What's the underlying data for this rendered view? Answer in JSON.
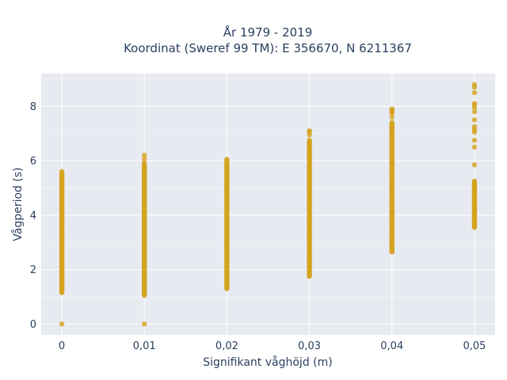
{
  "chart_data": {
    "type": "scatter",
    "title_lines": [
      "År 1979 - 2019",
      "Koordinat (Sweref 99 TM): E 356670, N 6211367"
    ],
    "xlabel": "Signifikant våghöjd (m)",
    "ylabel": "Vågperiod (s)",
    "xlim": [
      -0.0025,
      0.0525
    ],
    "ylim": [
      -0.4,
      9.2
    ],
    "x_ticks": [
      0,
      0.01,
      0.02,
      0.03,
      0.04,
      0.05
    ],
    "x_tick_labels": [
      "0",
      "0,01",
      "0,02",
      "0,03",
      "0,04",
      "0,05"
    ],
    "y_ticks": [
      0,
      2,
      4,
      6,
      8
    ],
    "y_tick_labels": [
      "0",
      "2",
      "4",
      "6",
      "8"
    ],
    "grid": true,
    "marker_color": "#d4a420",
    "plot_background": "#e8eaf1",
    "series": [
      {
        "columns": [
          {
            "x": 0.0,
            "ranges": [
              [
                1.15,
                5.55
              ]
            ],
            "points": [
              0.0,
              5.6
            ]
          },
          {
            "x": 0.01,
            "ranges": [
              [
                1.05,
                5.9
              ]
            ],
            "points": [
              0.0,
              6.05,
              6.2
            ]
          },
          {
            "x": 0.02,
            "ranges": [
              [
                1.3,
                6.05
              ]
            ],
            "points": []
          },
          {
            "x": 0.03,
            "ranges": [
              [
                1.75,
                6.75
              ]
            ],
            "points": [
              6.95,
              7.05,
              7.1
            ]
          },
          {
            "x": 0.04,
            "ranges": [
              [
                2.65,
                7.4
              ]
            ],
            "points": [
              7.6,
              7.75,
              7.8,
              7.85,
              7.9
            ]
          },
          {
            "x": 0.05,
            "ranges": [
              [
                3.55,
                5.25
              ]
            ],
            "points": [
              5.85,
              6.5,
              6.75,
              7.05,
              7.15,
              7.25,
              7.5,
              7.8,
              7.95,
              8.05,
              8.1,
              8.5,
              8.7,
              8.8
            ]
          }
        ]
      }
    ]
  }
}
